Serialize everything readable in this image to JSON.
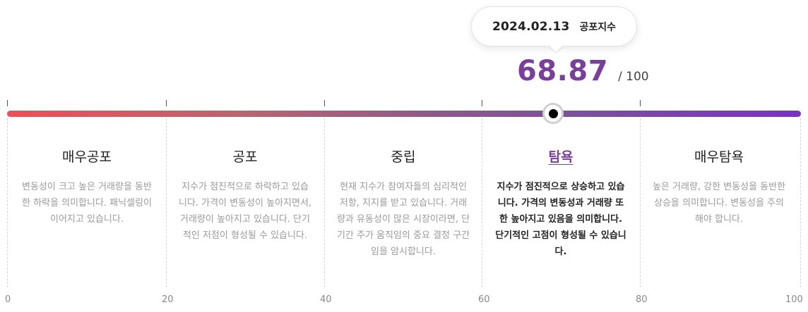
{
  "tooltip": {
    "date": "2024.02.13",
    "label": "공포지수"
  },
  "score": {
    "value": "68.87",
    "max": "/ 100",
    "fraction": 0.6887
  },
  "zones": [
    {
      "title": "매우공포",
      "desc": "변동성이 크고 높은 거래량을 동반한 하락을 의미합니다. 패닉셀링이 이어지고 있습니다.",
      "active": false
    },
    {
      "title": "공포",
      "desc": "지수가 점진적으로 하락하고 있습니다. 가격이 변동성이 높아지면서, 거래량이 높아지고 있습니다. 단기적인 저점이 형성될 수 있습니다.",
      "active": false
    },
    {
      "title": "중립",
      "desc": "현재 지수가 참여자들의 심리적인 저항, 지지를 받고 있습니다. 거래량과 유동성이 많은 시장이라면, 단기간 주가 움직임의 중요 결정 구간임을 암시합니다.",
      "active": false
    },
    {
      "title": "탐욕",
      "desc": "지수가 점진적으로 상승하고 있습니다. 가격의 변동성과 거래량 또한 높아지고 있음을 의미합니다. 단기적인 고점이 형성될 수 있습니다.",
      "active": true
    },
    {
      "title": "매우탐욕",
      "desc": "높은 거래량, 강한 변동성을 동반한 상승을 의미합니다. 변동성을 주의해야 합니다.",
      "active": false
    }
  ],
  "axis": [
    "0",
    "20",
    "40",
    "60",
    "80",
    "100"
  ],
  "colors": {
    "accent": "#7a3f9a",
    "gradient_start": "#ee4f58",
    "gradient_end": "#7a31c4"
  }
}
